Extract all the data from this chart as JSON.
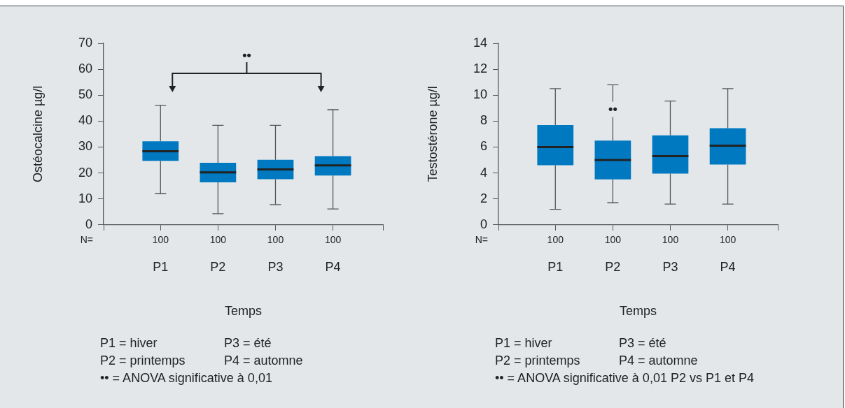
{
  "chart_data": [
    {
      "type": "box",
      "categories": [
        "P1",
        "P2",
        "P3",
        "P4"
      ],
      "xlabel": "Temps",
      "ylabel": "Ostéocalcine µg/l",
      "ylim": [
        0,
        70
      ],
      "yticks": [
        0,
        10,
        20,
        30,
        40,
        50,
        60,
        70
      ],
      "grid": false,
      "legend": false,
      "series": [
        {
          "color": "#0079c1",
          "boxes": [
            {
              "low": 12.0,
              "q1": 24.7,
              "median": 28.4,
              "q3": 32.2,
              "high": 46.1
            },
            {
              "low": 4.3,
              "q1": 16.4,
              "median": 20.2,
              "q3": 23.9,
              "high": 38.4
            },
            {
              "low": 7.8,
              "q1": 17.6,
              "median": 21.4,
              "q3": 25.1,
              "high": 38.4
            },
            {
              "low": 6.1,
              "q1": 19.0,
              "median": 22.9,
              "q3": 26.5,
              "high": 44.4
            }
          ]
        }
      ],
      "annotations": [
        "N=",
        "100",
        "100",
        "100",
        "100",
        "P1 = hiver",
        "P3 = été",
        "P2 = printemps",
        "P4 = automne",
        "•• = ANOVA significative à 0,01",
        "••"
      ]
    },
    {
      "type": "box",
      "categories": [
        "P1",
        "P2",
        "P3",
        "P4"
      ],
      "xlabel": "Temps",
      "ylabel": "Testostérone µg/l",
      "ylim": [
        0,
        14
      ],
      "yticks": [
        0,
        2,
        4,
        6,
        8,
        10,
        12,
        14
      ],
      "grid": false,
      "legend": false,
      "series": [
        {
          "color": "#0079c1",
          "boxes": [
            {
              "low": 1.2,
              "q1": 4.6,
              "median": 6.0,
              "q3": 7.7,
              "high": 10.5
            },
            {
              "low": 1.7,
              "q1": 3.5,
              "median": 5.0,
              "q3": 6.5,
              "high": 10.8
            },
            {
              "low": 1.6,
              "q1": 3.95,
              "median": 5.3,
              "q3": 6.9,
              "high": 9.55
            },
            {
              "low": 1.6,
              "q1": 4.65,
              "median": 6.1,
              "q3": 7.45,
              "high": 10.5
            }
          ]
        }
      ],
      "annotations": [
        {
          "text": "••",
          "x": "P2",
          "y": 8.9
        },
        "N=",
        "100",
        "100",
        "100",
        "100",
        "P1 = hiver",
        "P3 = été",
        "P2 = printemps",
        "P4 = automne",
        "•• = ANOVA significative à 0,01 P2 vs P1 et P4"
      ]
    }
  ]
}
